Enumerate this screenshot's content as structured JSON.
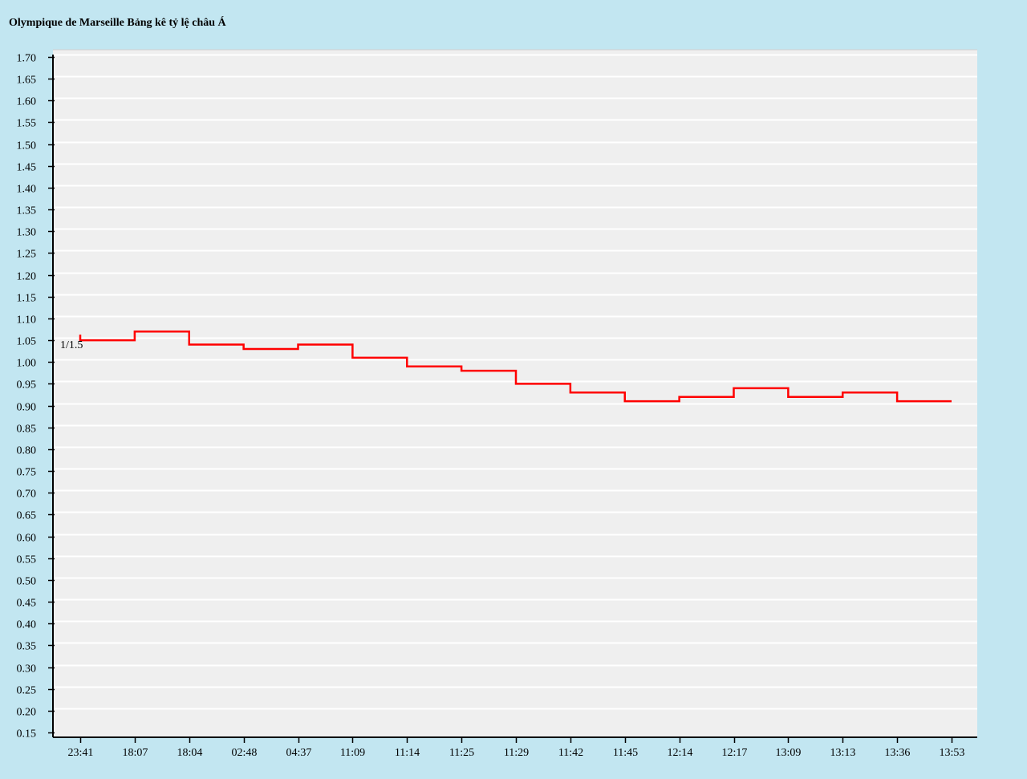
{
  "chart_data": {
    "type": "line",
    "step": true,
    "title": "Olympique de Marseille Bảng kê tỷ lệ châu Á",
    "xlabel": "",
    "ylabel": "",
    "x": [
      "23:41",
      "18:07",
      "18:04",
      "02:48",
      "04:37",
      "11:09",
      "11:14",
      "11:25",
      "11:29",
      "11:42",
      "11:45",
      "12:14",
      "12:17",
      "13:09",
      "13:13",
      "13:36",
      "13:53"
    ],
    "values": [
      1.05,
      1.07,
      1.04,
      1.03,
      1.04,
      1.01,
      0.99,
      0.98,
      0.95,
      0.93,
      0.91,
      0.92,
      0.94,
      0.92,
      0.93,
      0.91,
      0.91
    ],
    "ylim": [
      0.15,
      1.7
    ],
    "ytick_step": 0.05,
    "grid": true,
    "annotation": "1/1.5",
    "colors": {
      "line": "#ff0000",
      "plot_background": "#efefef",
      "page_background": "#c2e6f1",
      "grid": "#ffffff"
    }
  }
}
